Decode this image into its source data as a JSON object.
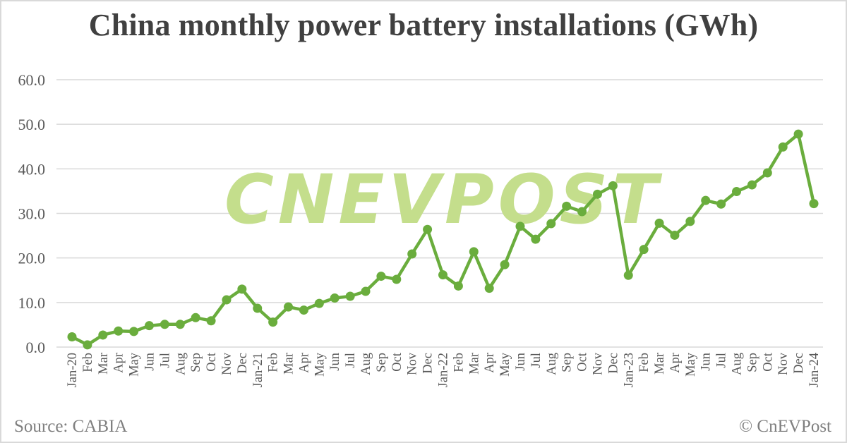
{
  "title": "China monthly power battery installations (GWh)",
  "footer": {
    "source": "Source: CABIA",
    "credit": "© CnEVPost"
  },
  "watermark": "CNEVPOST",
  "colors": {
    "line": "#6aad3d",
    "watermark": "#c4de8c",
    "grid": "#d9d9d9",
    "text": "#595959",
    "title": "#404040"
  },
  "chart_data": {
    "type": "line",
    "title": "China monthly power battery installations (GWh)",
    "xlabel": "",
    "ylabel": "",
    "ylim": [
      0,
      60
    ],
    "yticks": [
      "0.0",
      "10.0",
      "20.0",
      "30.0",
      "40.0",
      "50.0",
      "60.0"
    ],
    "grid": true,
    "legend": "none",
    "categories": [
      "Jan-20",
      "Feb",
      "Mar",
      "Apr",
      "May",
      "Jun",
      "Jul",
      "Aug",
      "Sep",
      "Oct",
      "Nov",
      "Dec",
      "Jan-21",
      "Feb",
      "Mar",
      "Apr",
      "May",
      "Jun",
      "Jul",
      "Aug",
      "Sep",
      "Oct",
      "Nov",
      "Dec",
      "Jan-22",
      "Feb",
      "Mar",
      "Apr",
      "May",
      "Jun",
      "Jul",
      "Aug",
      "Sep",
      "Oct",
      "Nov",
      "Dec",
      "Jan-23",
      "Feb",
      "Mar",
      "Apr",
      "May",
      "Jun",
      "Jul",
      "Aug",
      "Sep",
      "Oct",
      "Nov",
      "Dec",
      "Jan-24"
    ],
    "series": [
      {
        "name": "Power battery installations (GWh)",
        "values": [
          2.3,
          0.5,
          2.7,
          3.6,
          3.5,
          4.8,
          5.1,
          5.1,
          6.6,
          5.9,
          10.6,
          13.0,
          8.7,
          5.6,
          9.0,
          8.3,
          9.8,
          11.0,
          11.4,
          12.5,
          15.9,
          15.2,
          20.9,
          26.4,
          16.2,
          13.7,
          21.4,
          13.2,
          18.5,
          27.1,
          24.2,
          27.7,
          31.6,
          30.4,
          34.3,
          36.2,
          16.1,
          21.9,
          27.8,
          25.1,
          28.2,
          32.9,
          32.1,
          34.9,
          36.4,
          39.1,
          44.9,
          47.8,
          32.2
        ]
      }
    ],
    "annotations": [
      "Source: CABIA",
      "© CnEVPost"
    ]
  }
}
